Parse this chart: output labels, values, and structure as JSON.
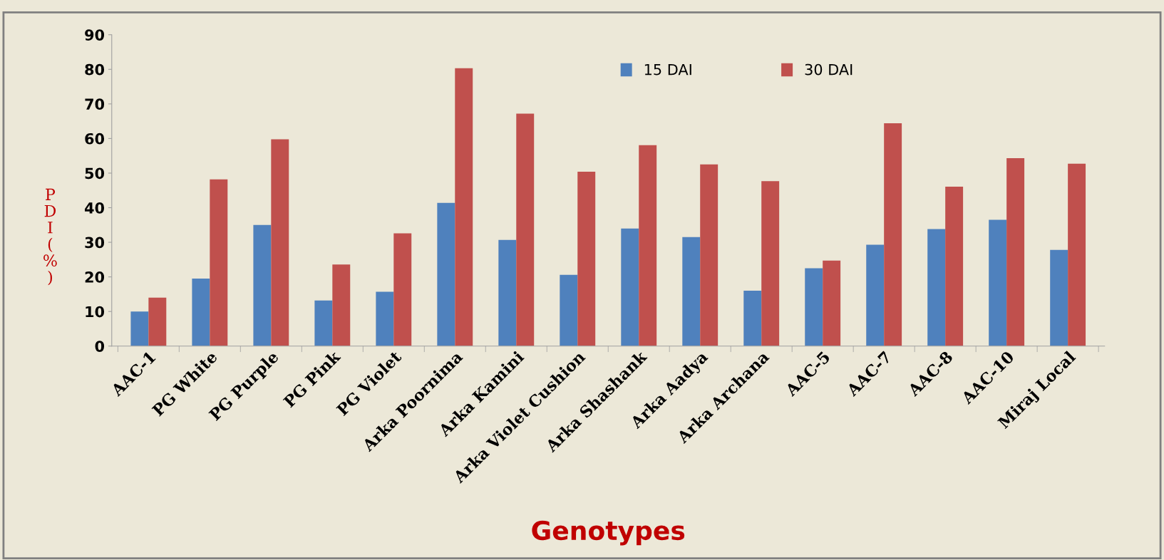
{
  "chart_data": {
    "type": "bar",
    "xlabel": "Genotypes",
    "ylabel": "PDI (%)",
    "categories": [
      "AAC-1",
      "PG White",
      "PG Purple",
      "PG Pink",
      "PG Violet",
      "Arka Poornima",
      "Arka Kamini",
      "Arka Violet Cushion",
      "Arka Shashank",
      "Arka Aadya",
      "Arka Archana",
      "AAC-5",
      "AAC-7",
      "AAC-8",
      "AAC-10",
      "Miraj Local"
    ],
    "series": [
      {
        "name": "15 DAI",
        "color": "#4f81bd",
        "values": [
          10,
          19.5,
          35,
          13.2,
          15.7,
          41.4,
          30.7,
          20.6,
          34,
          31.5,
          16,
          22.5,
          29.3,
          33.8,
          36.5,
          27.8
        ]
      },
      {
        "name": "30 DAI",
        "color": "#c0504d",
        "values": [
          14,
          48.2,
          59.8,
          23.6,
          32.6,
          80.3,
          67.2,
          50.4,
          58.1,
          52.5,
          47.7,
          24.7,
          64.4,
          46.1,
          54.3,
          52.7
        ]
      }
    ],
    "ylim": [
      0,
      90
    ],
    "yticks": [
      0,
      10,
      20,
      30,
      40,
      50,
      60,
      70,
      80,
      90
    ],
    "grid": false,
    "legend": "top"
  }
}
